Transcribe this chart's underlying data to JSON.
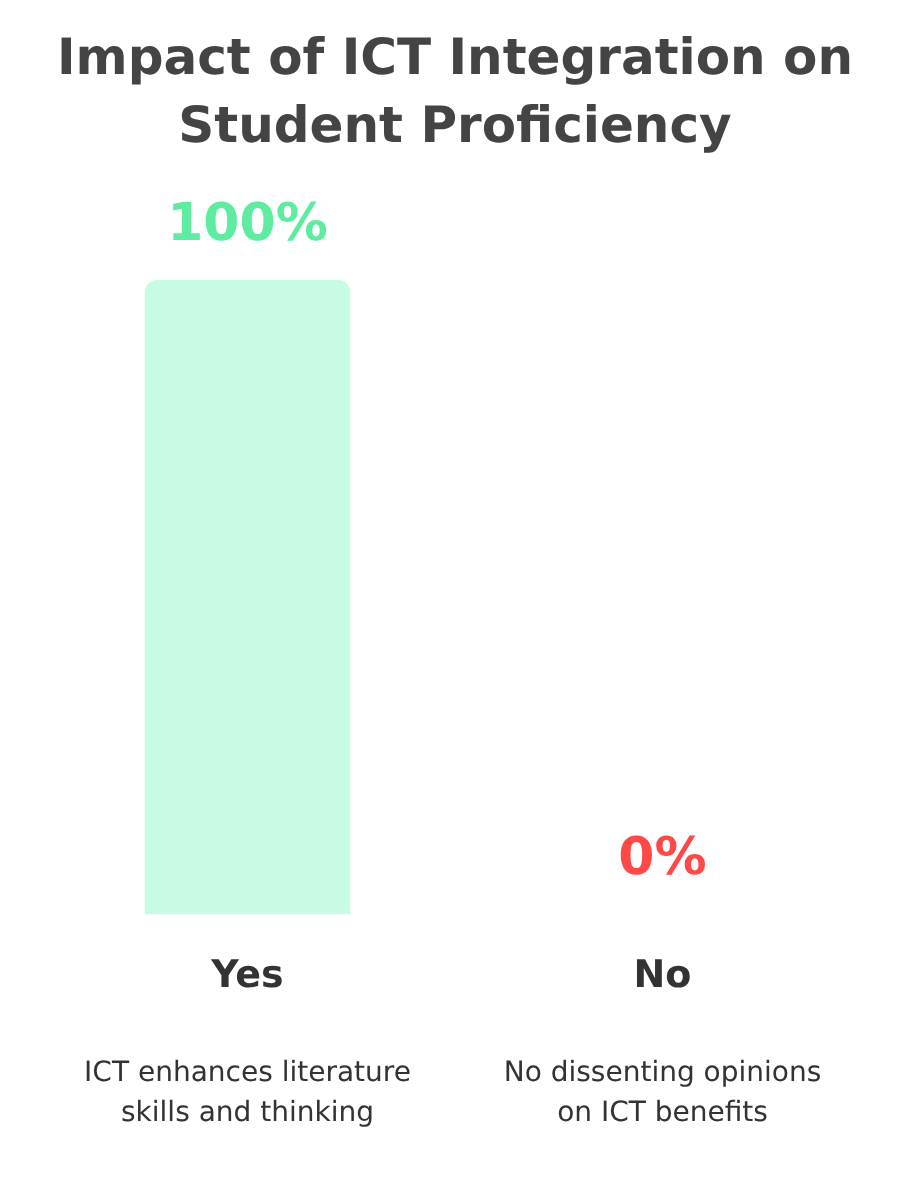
{
  "chart_data": {
    "type": "bar",
    "title": "Impact of ICT Integration on Student Proficiency",
    "categories": [
      "Yes",
      "No"
    ],
    "values": [
      100,
      0
    ],
    "colors": [
      "#c8fbe3",
      "#ffc9c9"
    ],
    "value_labels": [
      "100%",
      "0%"
    ],
    "ylim": [
      0,
      100
    ],
    "tick_labels": "x",
    "grid": false,
    "legend": false,
    "annotations": [
      "ICT enhances literature skills and thinking",
      "No dissenting opinions on ICT benefits"
    ]
  }
}
